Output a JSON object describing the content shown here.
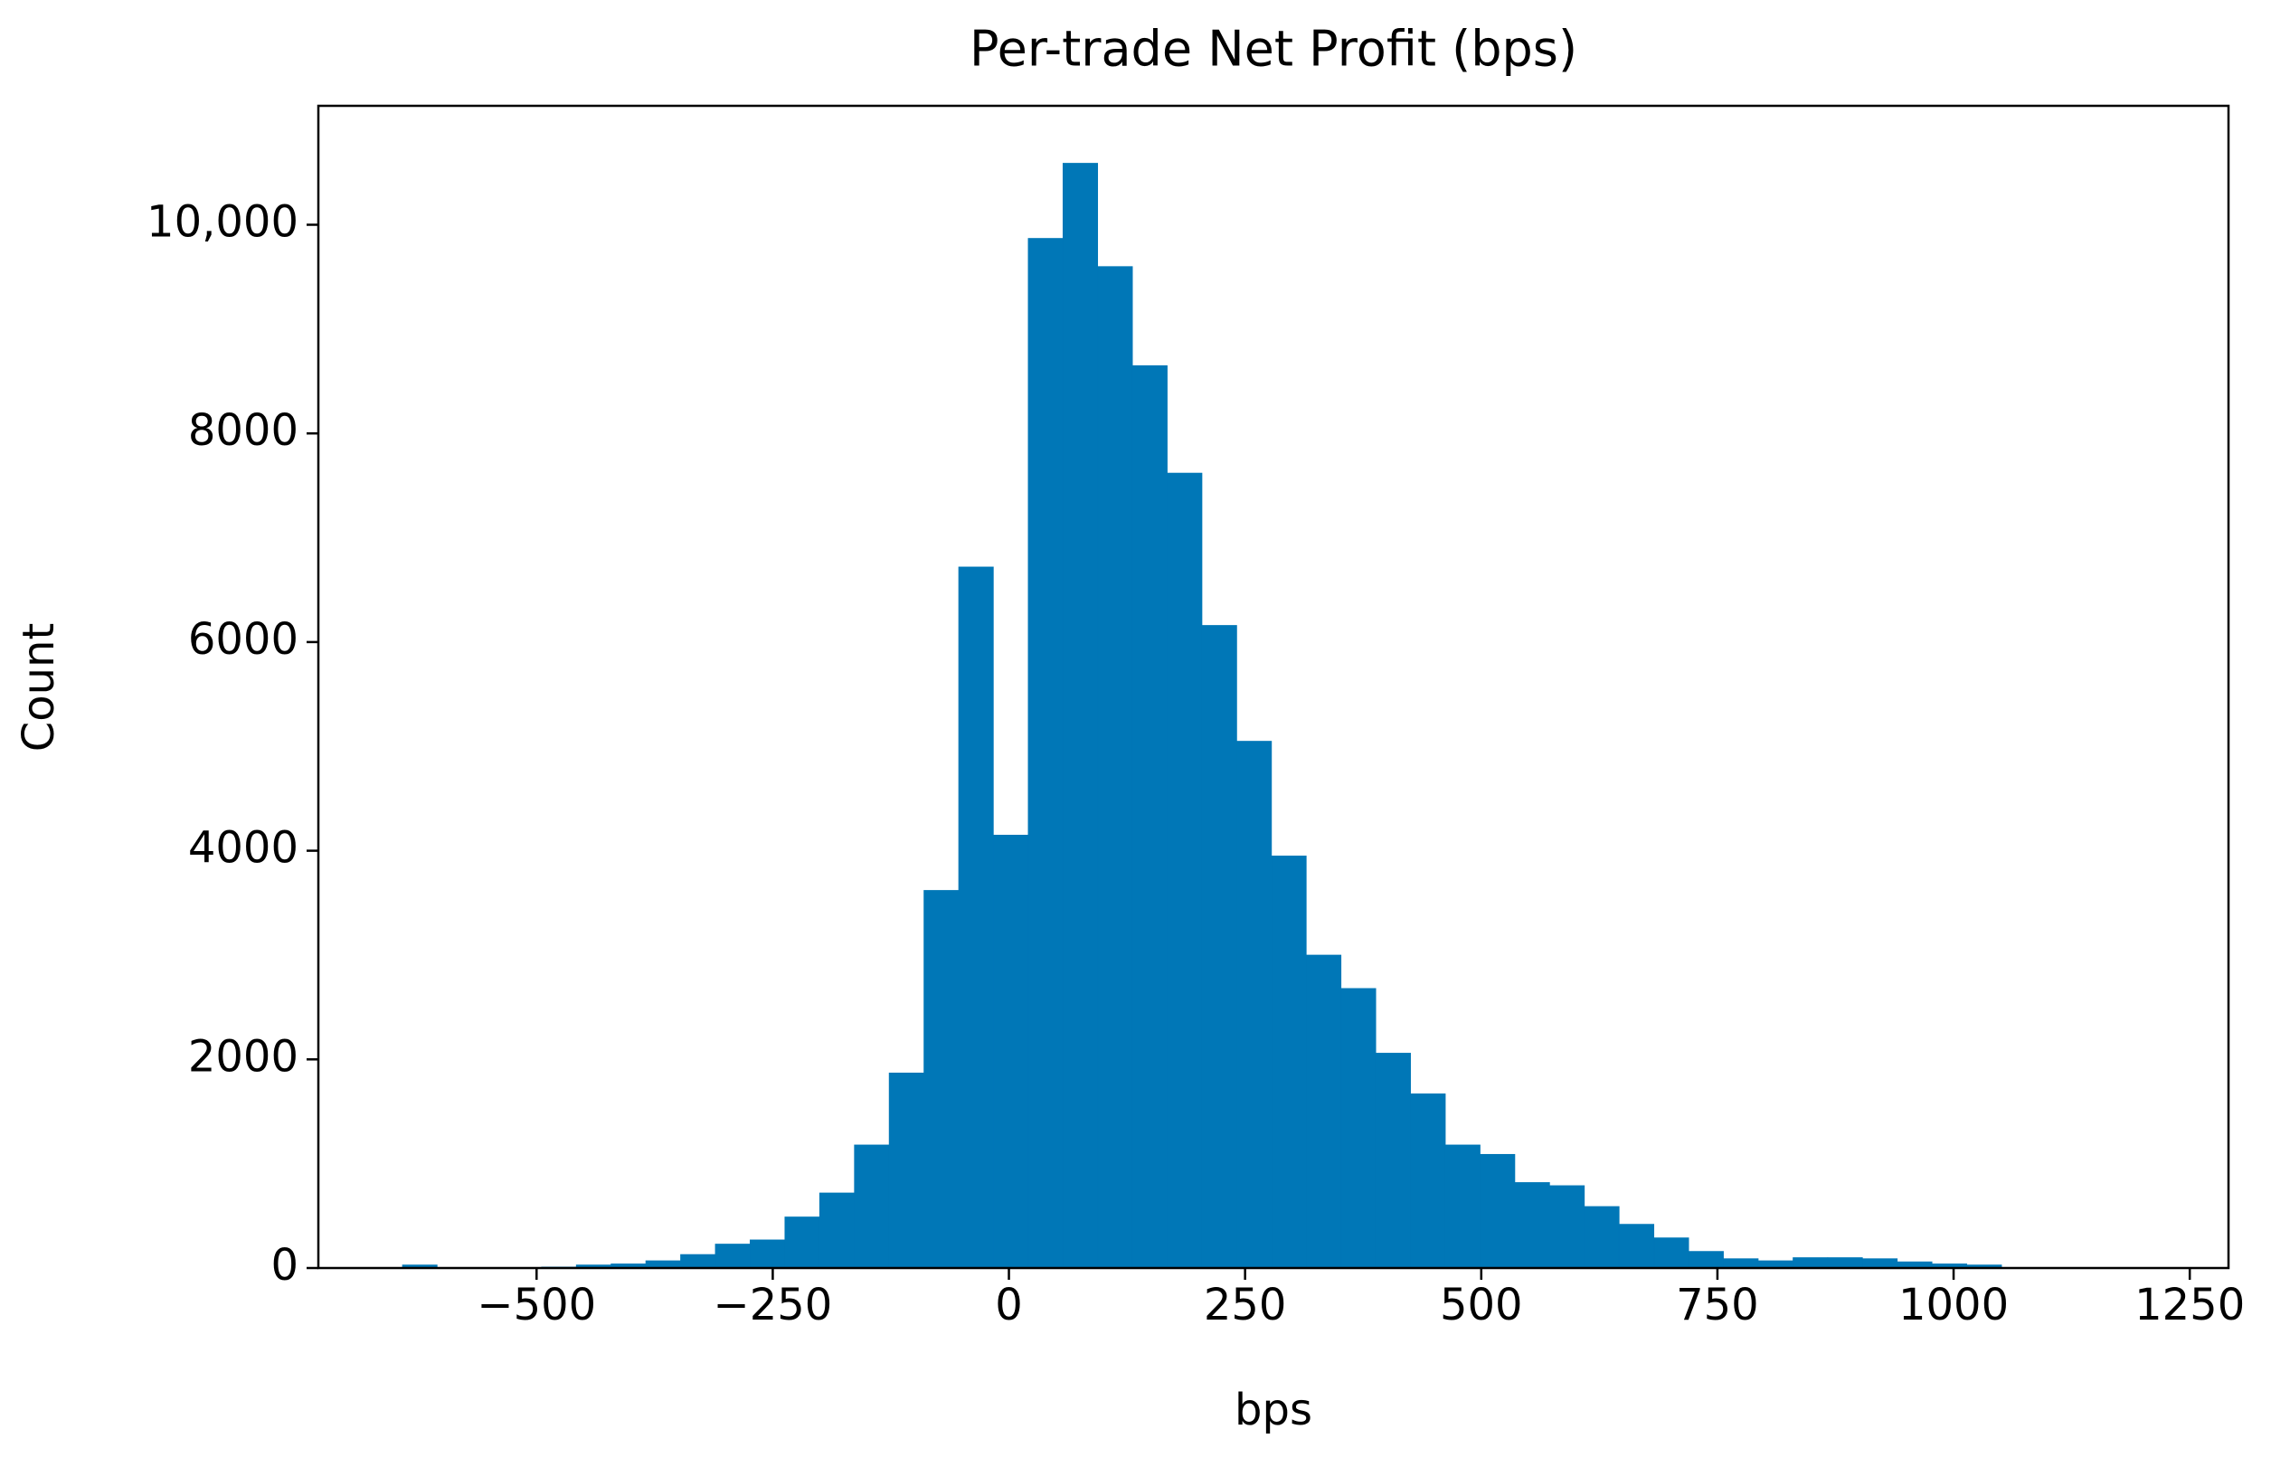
{
  "chart_data": {
    "type": "histogram",
    "title": "Per-trade Net Profit (bps)",
    "x_label": "bps",
    "y_label": "Count",
    "color": "#0077b7",
    "bins": [
      -642,
      -605.2,
      -568.4,
      -531.6,
      -494.8,
      -458,
      -421.2,
      -384.4,
      -347.6,
      -310.8,
      -274,
      -237.2,
      -200.4,
      -163.6,
      -126.8,
      -90,
      -53.2,
      -16.4,
      20.4,
      57.2,
      94,
      130.8,
      167.6,
      204.4,
      241.2,
      278,
      314.8,
      351.6,
      388.4,
      425.2,
      462,
      498.8,
      535.6,
      572.4,
      609.2,
      646,
      682.8,
      719.6,
      756.4,
      793.2,
      830,
      866.8,
      903.6,
      940.4,
      977.2,
      1014,
      1050.8
    ],
    "counts": [
      30,
      5,
      5,
      5,
      10,
      30,
      40,
      70,
      130,
      230,
      270,
      490,
      720,
      1180,
      1870,
      3620,
      6720,
      4150,
      9870,
      10590,
      9600,
      8650,
      7620,
      6160,
      5050,
      3950,
      3000,
      2680,
      2060,
      1670,
      1180,
      1090,
      820,
      790,
      590,
      420,
      290,
      160,
      90,
      70,
      100,
      100,
      90,
      60,
      40,
      30
    ],
    "xlim": [
      -731,
      1291
    ],
    "ylim": [
      0,
      11140
    ],
    "xticks": [
      {
        "value": -500,
        "label": "−500"
      },
      {
        "value": -250,
        "label": "−250"
      },
      0,
      250,
      500,
      750,
      1000,
      1250
    ],
    "yticks": [
      0,
      2000,
      4000,
      6000,
      8000,
      {
        "value": 10000,
        "label": "10,000"
      }
    ]
  }
}
